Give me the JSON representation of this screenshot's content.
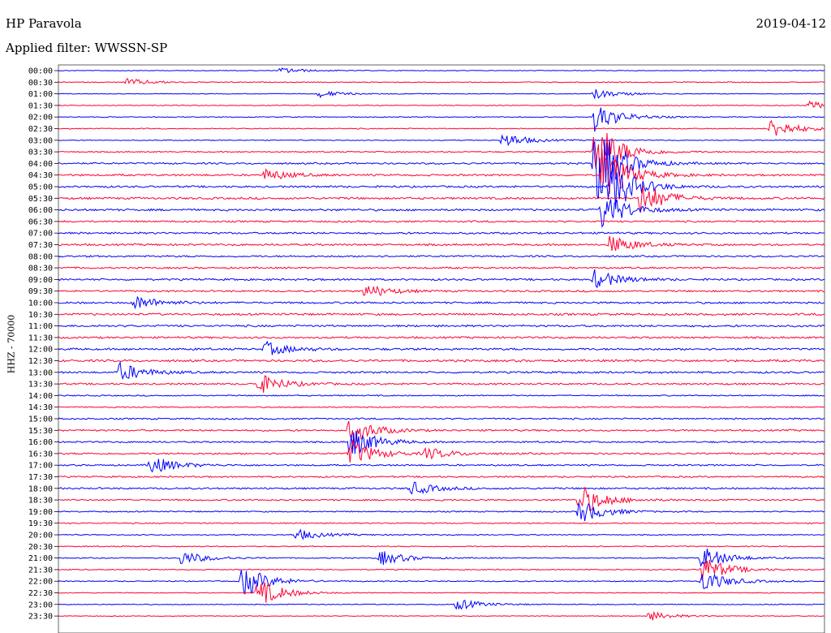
{
  "header": {
    "station": "HP Paravola",
    "date": "2019-04-12",
    "filter": "Applied filter: WWSSN-SP"
  },
  "chart_data": {
    "type": "line",
    "title": "HP Paravola",
    "ylabel": "HHZ - 70000",
    "row_labels": [
      "00:00",
      "00:30",
      "01:00",
      "01:30",
      "02:00",
      "02:30",
      "03:00",
      "03:30",
      "04:00",
      "04:30",
      "05:00",
      "05:30",
      "06:00",
      "06:30",
      "07:00",
      "07:30",
      "08:00",
      "08:30",
      "09:00",
      "09:30",
      "10:00",
      "10:30",
      "11:00",
      "11:30",
      "12:00",
      "12:30",
      "13:00",
      "13:30",
      "14:00",
      "14:30",
      "15:00",
      "15:30",
      "16:00",
      "16:30",
      "17:00",
      "17:30",
      "18:00",
      "18:30",
      "19:00",
      "19:30",
      "20:00",
      "20:30",
      "21:00",
      "21:30",
      "22:00",
      "22:30",
      "23:00",
      "23:30"
    ],
    "row_duration_minutes": 30,
    "trace_colors": [
      "#0000ff",
      "#ff0033"
    ],
    "noise_level": [
      0.08,
      0.1,
      0.08,
      0.1,
      0.1,
      0.12,
      0.1,
      0.14,
      0.2,
      0.22,
      0.22,
      0.24,
      0.24,
      0.2,
      0.22,
      0.22,
      0.2,
      0.2,
      0.22,
      0.2,
      0.22,
      0.24,
      0.24,
      0.22,
      0.24,
      0.26,
      0.22,
      0.2,
      0.14,
      0.14,
      0.18,
      0.2,
      0.18,
      0.2,
      0.18,
      0.18,
      0.2,
      0.18,
      0.14,
      0.14,
      0.12,
      0.12,
      0.12,
      0.12,
      0.12,
      0.1,
      0.1,
      0.08
    ],
    "events": [
      {
        "row": 0,
        "t": 0.29,
        "amp": 0.6
      },
      {
        "row": 1,
        "t": 0.09,
        "amp": 0.8
      },
      {
        "row": 2,
        "t": 0.34,
        "amp": 0.7
      },
      {
        "row": 3,
        "t": 0.98,
        "amp": 0.8
      },
      {
        "row": 2,
        "t": 0.7,
        "amp": 1.0
      },
      {
        "row": 4,
        "t": 0.7,
        "amp": 3.0
      },
      {
        "row": 5,
        "t": 0.93,
        "amp": 2.2
      },
      {
        "row": 6,
        "t": 0.58,
        "amp": 1.6
      },
      {
        "row": 7,
        "t": 0.7,
        "amp": 7.0
      },
      {
        "row": 8,
        "t": 0.7,
        "amp": 9.0
      },
      {
        "row": 9,
        "t": 0.71,
        "amp": 6.0
      },
      {
        "row": 10,
        "t": 0.72,
        "amp": 6.0
      },
      {
        "row": 11,
        "t": 0.76,
        "amp": 3.5
      },
      {
        "row": 12,
        "t": 0.71,
        "amp": 4.0
      },
      {
        "row": 15,
        "t": 0.72,
        "amp": 2.0
      },
      {
        "row": 18,
        "t": 0.7,
        "amp": 2.0
      },
      {
        "row": 9,
        "t": 0.27,
        "amp": 1.2
      },
      {
        "row": 19,
        "t": 0.4,
        "amp": 1.5
      },
      {
        "row": 20,
        "t": 0.1,
        "amp": 1.5
      },
      {
        "row": 24,
        "t": 0.27,
        "amp": 1.5
      },
      {
        "row": 26,
        "t": 0.08,
        "amp": 2.0
      },
      {
        "row": 27,
        "t": 0.26,
        "amp": 2.2
      },
      {
        "row": 31,
        "t": 0.38,
        "amp": 3.0
      },
      {
        "row": 32,
        "t": 0.38,
        "amp": 3.5
      },
      {
        "row": 33,
        "t": 0.38,
        "amp": 3.0
      },
      {
        "row": 34,
        "t": 0.12,
        "amp": 2.0
      },
      {
        "row": 33,
        "t": 0.48,
        "amp": 1.2
      },
      {
        "row": 36,
        "t": 0.46,
        "amp": 1.4
      },
      {
        "row": 37,
        "t": 0.68,
        "amp": 3.5
      },
      {
        "row": 38,
        "t": 0.68,
        "amp": 2.5
      },
      {
        "row": 40,
        "t": 0.31,
        "amp": 1.2
      },
      {
        "row": 42,
        "t": 0.16,
        "amp": 1.5
      },
      {
        "row": 42,
        "t": 0.42,
        "amp": 1.6
      },
      {
        "row": 42,
        "t": 0.84,
        "amp": 2.5
      },
      {
        "row": 43,
        "t": 0.84,
        "amp": 3.0
      },
      {
        "row": 44,
        "t": 0.24,
        "amp": 3.5
      },
      {
        "row": 44,
        "t": 0.84,
        "amp": 2.5
      },
      {
        "row": 45,
        "t": 0.26,
        "amp": 3.0
      },
      {
        "row": 46,
        "t": 0.52,
        "amp": 1.2
      },
      {
        "row": 47,
        "t": 0.77,
        "amp": 1.0
      }
    ]
  }
}
